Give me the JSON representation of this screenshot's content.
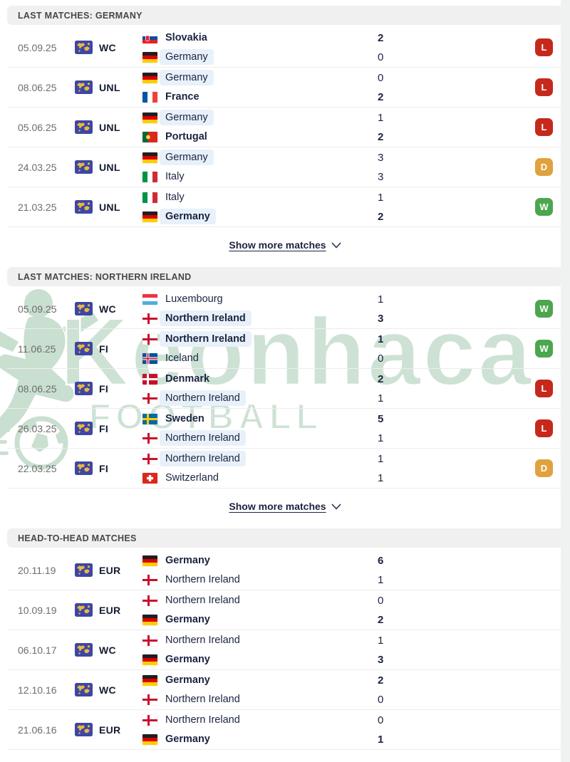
{
  "watermark": {
    "brand": "Keonhaca",
    "sub": ".FOOTBALL",
    "color": "#cde2d4"
  },
  "labels": {
    "show_more": "Show more matches"
  },
  "icons": {
    "competition": "world-map-icon",
    "show_more_chevron": "chevron-down-icon",
    "watermark_figure": "soccer-player-icon"
  },
  "result_colors": {
    "W": "#4ca64f",
    "D": "#e0a23e",
    "L": "#c5291c"
  },
  "sections": [
    {
      "title": "LAST MATCHES: GERMANY",
      "show_more": true,
      "matches": [
        {
          "date": "05.09.25",
          "comp": "WC",
          "rows": [
            {
              "team": "Slovakia",
              "flag": "sk",
              "score": "2",
              "bold": true
            },
            {
              "team": "Germany",
              "flag": "de",
              "score": "0",
              "highlight": true
            }
          ],
          "result": "L"
        },
        {
          "date": "08.06.25",
          "comp": "UNL",
          "rows": [
            {
              "team": "Germany",
              "flag": "de",
              "score": "0",
              "highlight": true
            },
            {
              "team": "France",
              "flag": "fr",
              "score": "2",
              "bold": true
            }
          ],
          "result": "L"
        },
        {
          "date": "05.06.25",
          "comp": "UNL",
          "rows": [
            {
              "team": "Germany",
              "flag": "de",
              "score": "1",
              "highlight": true
            },
            {
              "team": "Portugal",
              "flag": "pt",
              "score": "2",
              "bold": true
            }
          ],
          "result": "L"
        },
        {
          "date": "24.03.25",
          "comp": "UNL",
          "rows": [
            {
              "team": "Germany",
              "flag": "de",
              "score": "3",
              "highlight": true
            },
            {
              "team": "Italy",
              "flag": "it",
              "score": "3"
            }
          ],
          "result": "D"
        },
        {
          "date": "21.03.25",
          "comp": "UNL",
          "rows": [
            {
              "team": "Italy",
              "flag": "it",
              "score": "1"
            },
            {
              "team": "Germany",
              "flag": "de",
              "score": "2",
              "bold": true,
              "highlight": true
            }
          ],
          "result": "W"
        }
      ]
    },
    {
      "title": "LAST MATCHES: NORTHERN IRELAND",
      "show_more": true,
      "matches": [
        {
          "date": "05.09.25",
          "comp": "WC",
          "rows": [
            {
              "team": "Luxembourg",
              "flag": "lu",
              "score": "1"
            },
            {
              "team": "Northern Ireland",
              "flag": "ni",
              "score": "3",
              "bold": true,
              "highlight": true
            }
          ],
          "result": "W"
        },
        {
          "date": "11.06.25",
          "comp": "FI",
          "rows": [
            {
              "team": "Northern Ireland",
              "flag": "ni",
              "score": "1",
              "bold": true,
              "highlight": true
            },
            {
              "team": "Iceland",
              "flag": "is",
              "score": "0"
            }
          ],
          "result": "W"
        },
        {
          "date": "08.06.25",
          "comp": "FI",
          "rows": [
            {
              "team": "Denmark",
              "flag": "dk",
              "score": "2",
              "bold": true
            },
            {
              "team": "Northern Ireland",
              "flag": "ni",
              "score": "1",
              "highlight": true
            }
          ],
          "result": "L"
        },
        {
          "date": "26.03.25",
          "comp": "FI",
          "rows": [
            {
              "team": "Sweden",
              "flag": "se",
              "score": "5",
              "bold": true
            },
            {
              "team": "Northern Ireland",
              "flag": "ni",
              "score": "1",
              "highlight": true
            }
          ],
          "result": "L"
        },
        {
          "date": "22.03.25",
          "comp": "FI",
          "rows": [
            {
              "team": "Northern Ireland",
              "flag": "ni",
              "score": "1",
              "highlight": true
            },
            {
              "team": "Switzerland",
              "flag": "ch",
              "score": "1"
            }
          ],
          "result": "D"
        }
      ]
    },
    {
      "title": "HEAD-TO-HEAD MATCHES",
      "show_more": false,
      "matches": [
        {
          "date": "20.11.19",
          "comp": "EUR",
          "rows": [
            {
              "team": "Germany",
              "flag": "de",
              "score": "6",
              "bold": true
            },
            {
              "team": "Northern Ireland",
              "flag": "ni",
              "score": "1"
            }
          ]
        },
        {
          "date": "10.09.19",
          "comp": "EUR",
          "rows": [
            {
              "team": "Northern Ireland",
              "flag": "ni",
              "score": "0"
            },
            {
              "team": "Germany",
              "flag": "de",
              "score": "2",
              "bold": true
            }
          ]
        },
        {
          "date": "06.10.17",
          "comp": "WC",
          "rows": [
            {
              "team": "Northern Ireland",
              "flag": "ni",
              "score": "1"
            },
            {
              "team": "Germany",
              "flag": "de",
              "score": "3",
              "bold": true
            }
          ]
        },
        {
          "date": "12.10.16",
          "comp": "WC",
          "rows": [
            {
              "team": "Germany",
              "flag": "de",
              "score": "2",
              "bold": true
            },
            {
              "team": "Northern Ireland",
              "flag": "ni",
              "score": "0"
            }
          ]
        },
        {
          "date": "21.06.16",
          "comp": "EUR",
          "rows": [
            {
              "team": "Northern Ireland",
              "flag": "ni",
              "score": "0"
            },
            {
              "team": "Germany",
              "flag": "de",
              "score": "1",
              "bold": true
            }
          ]
        }
      ]
    }
  ]
}
